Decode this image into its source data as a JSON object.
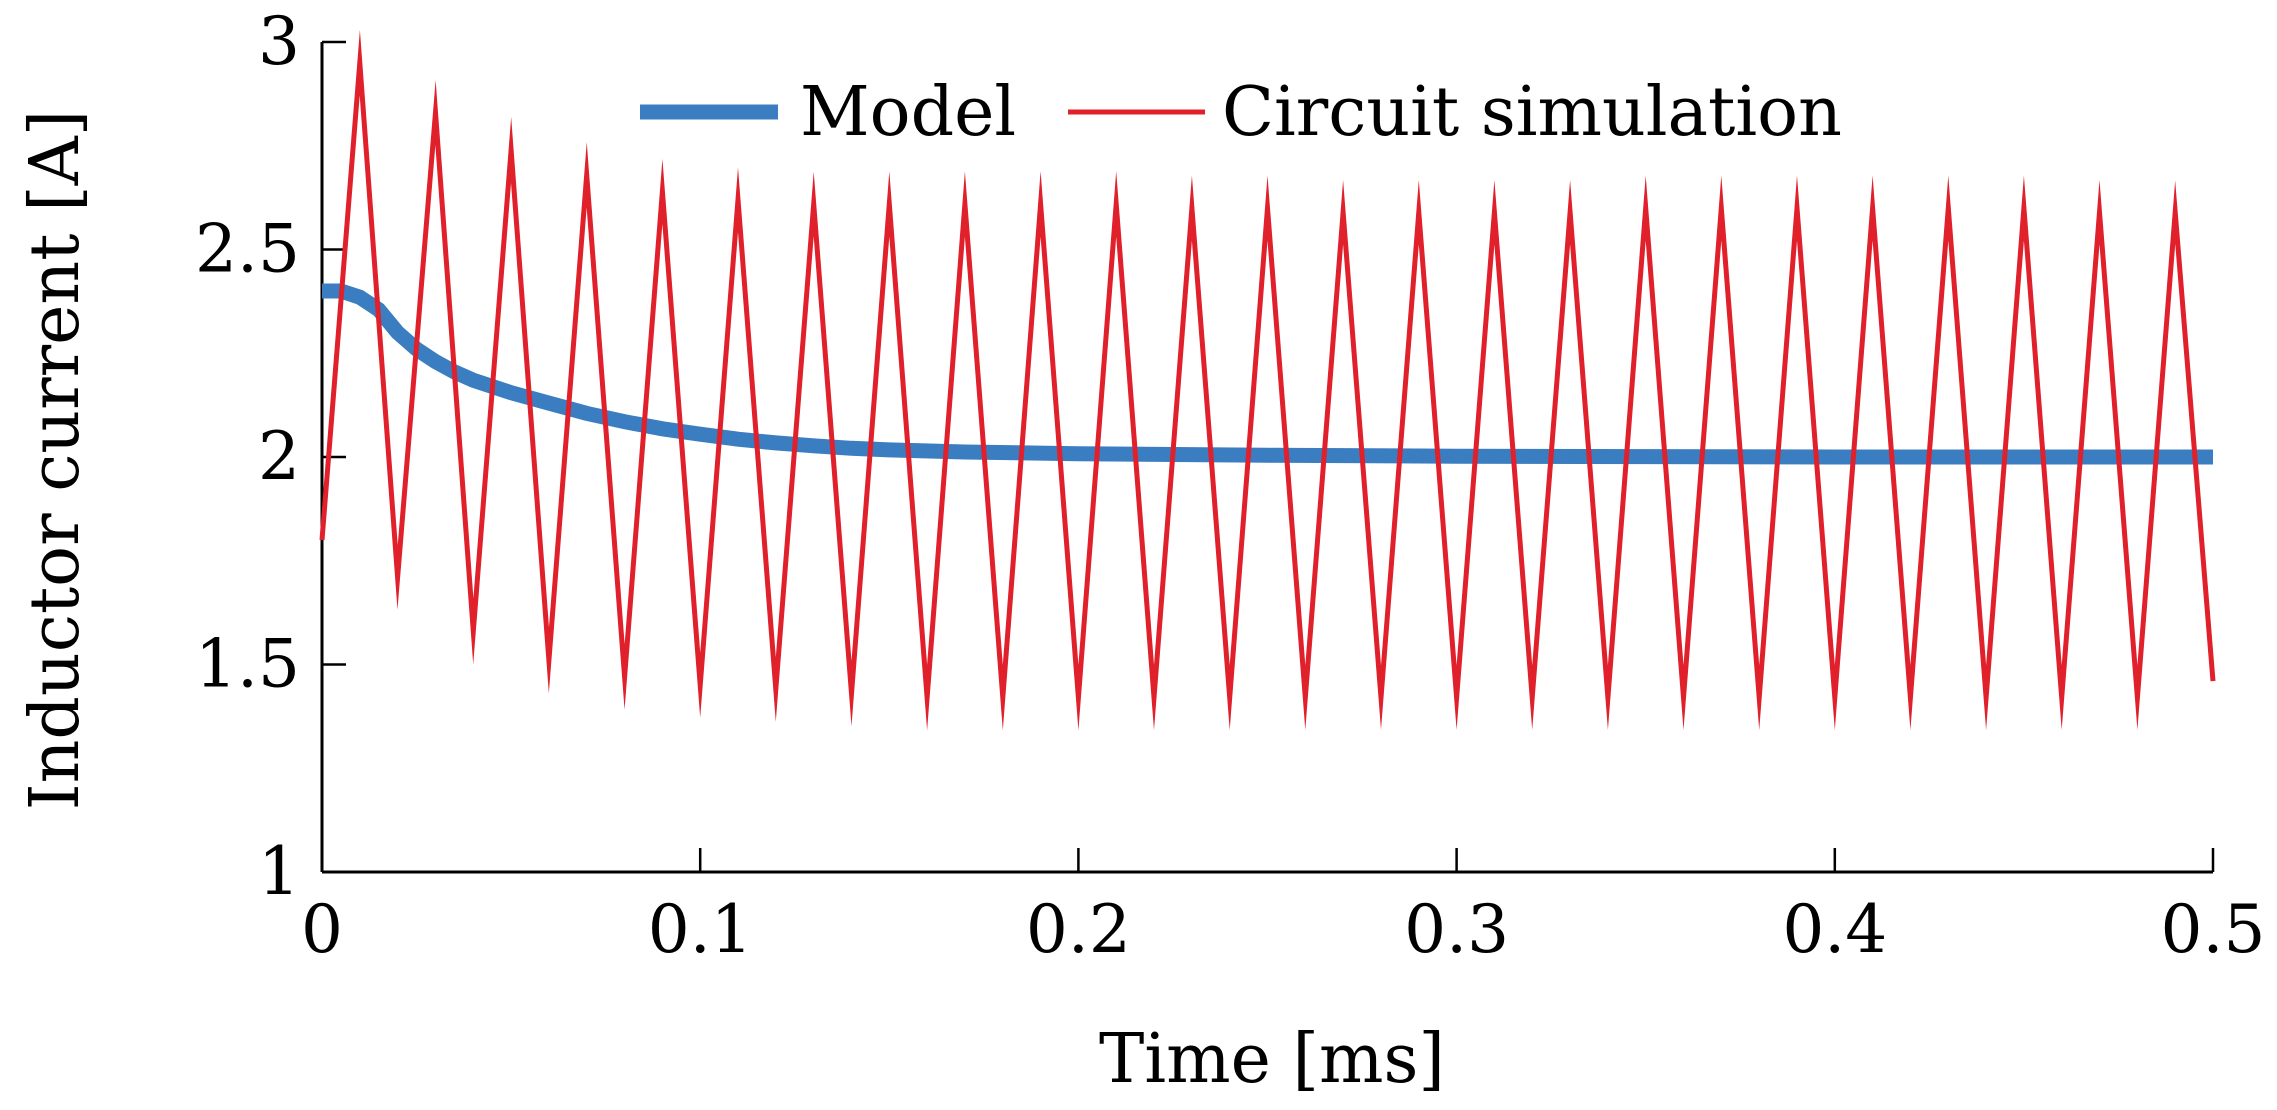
{
  "chart_data": {
    "type": "line",
    "title": "",
    "xlabel": "Time [ms]",
    "ylabel": "Inductor current [A]",
    "xlim": [
      0,
      0.5
    ],
    "ylim": [
      1,
      3
    ],
    "xticks": [
      0,
      0.1,
      0.2,
      0.3,
      0.4,
      0.5
    ],
    "xtick_labels": [
      "0",
      "0.1",
      "0.2",
      "0.3",
      "0.4",
      "0.5"
    ],
    "yticks": [
      1,
      1.5,
      2,
      2.5,
      3
    ],
    "ytick_labels": [
      "1",
      "1.5",
      "2",
      "2.5",
      "3"
    ],
    "grid": false,
    "legend_position": "top-center",
    "series": [
      {
        "name": "Model",
        "color": "#3a7dc0",
        "x": [
          0,
          0.005,
          0.01,
          0.015,
          0.02,
          0.025,
          0.03,
          0.035,
          0.04,
          0.05,
          0.06,
          0.07,
          0.08,
          0.09,
          0.1,
          0.11,
          0.12,
          0.13,
          0.14,
          0.15,
          0.17,
          0.2,
          0.25,
          0.3,
          0.35,
          0.4,
          0.45,
          0.5
        ],
        "y": [
          2.4,
          2.4,
          2.385,
          2.355,
          2.3,
          2.26,
          2.23,
          2.205,
          2.185,
          2.155,
          2.13,
          2.105,
          2.085,
          2.068,
          2.055,
          2.043,
          2.034,
          2.027,
          2.021,
          2.017,
          2.012,
          2.008,
          2.004,
          2.002,
          2.001,
          2.0,
          2.0,
          2.0
        ]
      },
      {
        "name": "Circuit simulation",
        "color": "#e0202a",
        "x": [
          0,
          0.01,
          0.02,
          0.03,
          0.04,
          0.05,
          0.06,
          0.07,
          0.08,
          0.09,
          0.1,
          0.11,
          0.12,
          0.13,
          0.14,
          0.15,
          0.16,
          0.17,
          0.18,
          0.19,
          0.2,
          0.21,
          0.22,
          0.23,
          0.24,
          0.25,
          0.26,
          0.27,
          0.28,
          0.29,
          0.3,
          0.31,
          0.32,
          0.33,
          0.34,
          0.35,
          0.36,
          0.37,
          0.38,
          0.39,
          0.4,
          0.41,
          0.42,
          0.43,
          0.44,
          0.45,
          0.46,
          0.47,
          0.48,
          0.49,
          0.5
        ],
        "y": [
          1.8,
          2.95,
          1.71,
          2.83,
          1.58,
          2.74,
          1.51,
          2.68,
          1.47,
          2.64,
          1.45,
          2.62,
          1.44,
          2.61,
          1.43,
          2.61,
          1.42,
          2.61,
          1.42,
          2.61,
          1.42,
          2.61,
          1.42,
          2.6,
          1.42,
          2.6,
          1.42,
          2.59,
          1.42,
          2.59,
          1.42,
          2.59,
          1.42,
          2.59,
          1.42,
          2.6,
          1.42,
          2.6,
          1.42,
          2.6,
          1.42,
          2.6,
          1.42,
          2.6,
          1.42,
          2.6,
          1.42,
          2.59,
          1.42,
          2.59,
          1.46
        ]
      }
    ]
  }
}
